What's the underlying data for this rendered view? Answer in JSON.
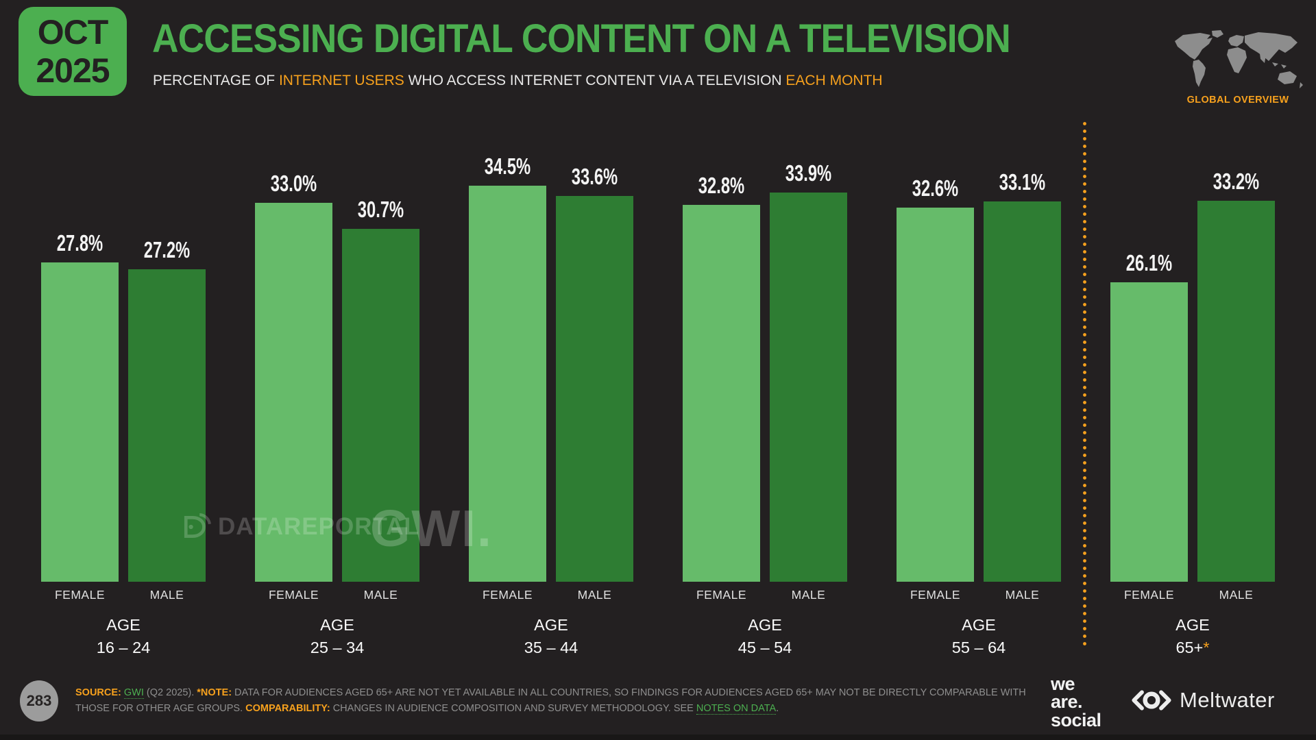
{
  "header": {
    "badge": {
      "month": "OCT",
      "year": "2025"
    },
    "title": "ACCESSING DIGITAL CONTENT ON A TELEVISION",
    "subtitle_parts": {
      "p1": "PERCENTAGE OF ",
      "p2": "INTERNET USERS",
      "p3": " WHO ACCESS INTERNET CONTENT VIA A TELEVISION ",
      "p4": "EACH MONTH"
    },
    "region_label": "GLOBAL OVERVIEW",
    "map_icon": "world-map-icon"
  },
  "chart_data": {
    "type": "bar",
    "title": "ACCESSING DIGITAL CONTENT ON A TELEVISION",
    "subtitle": "PERCENTAGE OF INTERNET USERS WHO ACCESS INTERNET CONTENT VIA A TELEVISION EACH MONTH",
    "unit": "%",
    "xlabel": "",
    "ylabel": "",
    "ylim": [
      0,
      35
    ],
    "grid": false,
    "legend": "series name shown under each bar",
    "category_prefix": "AGE",
    "categories": [
      "16 – 24",
      "25 – 34",
      "35 – 44",
      "45 – 54",
      "55 – 64",
      "65+"
    ],
    "category_note_flags": [
      false,
      false,
      false,
      false,
      false,
      true
    ],
    "note_marker": "*",
    "series": [
      {
        "name": "FEMALE",
        "color": "#66bb6a",
        "values": [
          27.8,
          33.0,
          34.5,
          32.8,
          32.6,
          26.1
        ],
        "labels": [
          "27.8%",
          "33.0%",
          "34.5%",
          "32.8%",
          "32.6%",
          "26.1%"
        ]
      },
      {
        "name": "MALE",
        "color": "#2e7d33",
        "values": [
          27.2,
          30.7,
          33.6,
          33.9,
          33.1,
          33.2
        ],
        "labels": [
          "27.2%",
          "30.7%",
          "33.6%",
          "33.9%",
          "33.1%",
          "33.2%"
        ]
      }
    ],
    "separator": {
      "after_category_index": 4,
      "style": "dotted",
      "color": "#f7a11d"
    }
  },
  "watermarks": {
    "dataportal": "DATAREPORTAL",
    "dataportal_icon": "signal-icon",
    "gwi": "GWI."
  },
  "footer": {
    "page_number": "283",
    "source": {
      "label_source": "SOURCE: ",
      "gwi": "GWI",
      "mid1": " (Q2 2025). ",
      "label_note": "*NOTE:",
      "mid2": " DATA FOR AUDIENCES AGED 65+ ARE NOT YET AVAILABLE IN ALL COUNTRIES, SO FINDINGS FOR AUDIENCES AGED 65+ MAY NOT BE DIRECTLY COMPARABLE WITH THOSE FOR OTHER AGE GROUPS. ",
      "label_comp": "COMPARABILITY:",
      "mid3": " CHANGES IN AUDIENCE COMPOSITION AND SURVEY METHODOLOGY. SEE ",
      "notes_link": "NOTES ON DATA",
      "end": "."
    },
    "wearesocial": {
      "line1": "we",
      "line2": "are.",
      "line3": "social"
    },
    "meltwater": {
      "name": "Meltwater",
      "icon": "eye-icon"
    }
  },
  "colors": {
    "background": "#232021",
    "accent_green": "#4caf50",
    "female_bar": "#66bb6a",
    "male_bar": "#2e7d33",
    "orange": "#f7a11d",
    "muted_text": "#8f8f8f"
  }
}
